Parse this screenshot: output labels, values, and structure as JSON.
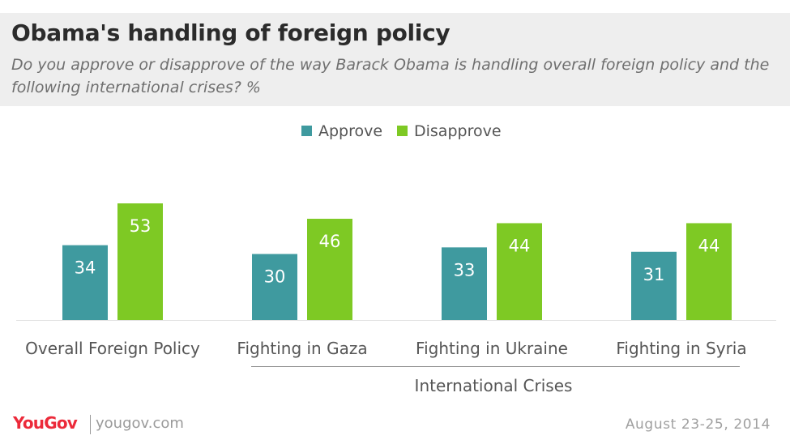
{
  "header": {
    "title": "Obama's handling of foreign policy",
    "subtitle": "Do you approve or disapprove of the way Barack Obama is handling overall foreign policy and the following international crises? %"
  },
  "chart_data": {
    "type": "bar",
    "categories": [
      "Overall Foreign Policy",
      "Fighting in Gaza",
      "Fighting in Ukraine",
      "Fighting in Syria"
    ],
    "series": [
      {
        "name": "Approve",
        "values": [
          34,
          30,
          33,
          31
        ],
        "color": "#3f9a9f"
      },
      {
        "name": "Disapprove",
        "values": [
          53,
          46,
          44,
          44
        ],
        "color": "#7ec924"
      }
    ],
    "group_label": "International Crises",
    "group_categories": [
      "Fighting in Gaza",
      "Fighting in Ukraine",
      "Fighting in Syria"
    ],
    "legend_position": "top-center",
    "grid": false,
    "ylim": [
      0,
      53
    ]
  },
  "footer": {
    "logo": "YouGov",
    "site": "yougov.com",
    "date": "August 23-25, 2014"
  }
}
